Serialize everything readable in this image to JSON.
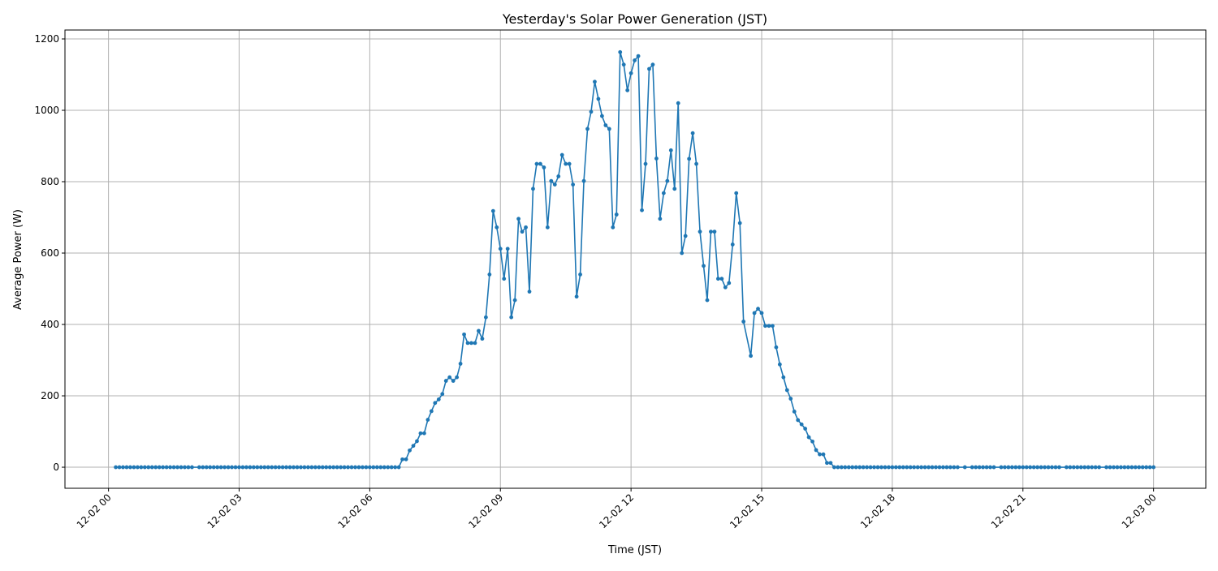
{
  "chart_data": {
    "type": "line",
    "title": "Yesterday's Solar Power Generation (JST)",
    "xlabel": "Time (JST)",
    "ylabel": "Average Power (W)",
    "x_tick_labels": [
      "12-02 00",
      "12-02 03",
      "12-02 06",
      "12-02 09",
      "12-02 12",
      "12-02 15",
      "12-02 18",
      "12-02 21",
      "12-03 00"
    ],
    "y_ticks": [
      0,
      200,
      400,
      600,
      800,
      1000,
      1200
    ],
    "ylim": [
      -59,
      1225
    ],
    "xlim_hours": [
      -1.0,
      25.2
    ],
    "grid": true,
    "marker": "circle",
    "color": "#1f77b4",
    "x": [
      "00:10",
      "00:15",
      "00:20",
      "00:25",
      "00:30",
      "00:35",
      "00:40",
      "00:45",
      "00:50",
      "00:55",
      "01:00",
      "01:05",
      "01:10",
      "01:15",
      "01:20",
      "01:25",
      "01:30",
      "01:35",
      "01:40",
      "01:45",
      "01:50",
      "01:55",
      "02:05",
      "02:10",
      "02:15",
      "02:20",
      "02:25",
      "02:30",
      "02:35",
      "02:40",
      "02:45",
      "02:50",
      "02:55",
      "03:00",
      "03:05",
      "03:10",
      "03:15",
      "03:20",
      "03:25",
      "03:30",
      "03:35",
      "03:40",
      "03:45",
      "03:50",
      "03:55",
      "04:00",
      "04:05",
      "04:10",
      "04:15",
      "04:20",
      "04:25",
      "04:30",
      "04:35",
      "04:40",
      "04:45",
      "04:50",
      "04:55",
      "05:00",
      "05:05",
      "05:10",
      "05:15",
      "05:20",
      "05:25",
      "05:30",
      "05:35",
      "05:40",
      "05:45",
      "05:50",
      "05:55",
      "06:00",
      "06:05",
      "06:10",
      "06:15",
      "06:20",
      "06:25",
      "06:30",
      "06:35",
      "06:40",
      "06:45",
      "06:50",
      "06:55",
      "07:00",
      "07:05",
      "07:10",
      "07:15",
      "07:20",
      "07:25",
      "07:30",
      "07:35",
      "07:40",
      "07:45",
      "07:50",
      "07:55",
      "08:00",
      "08:05",
      "08:10",
      "08:15",
      "08:20",
      "08:25",
      "08:30",
      "08:35",
      "08:40",
      "08:45",
      "08:50",
      "08:55",
      "09:00",
      "09:05",
      "09:10",
      "09:15",
      "09:20",
      "09:25",
      "09:30",
      "09:35",
      "09:40",
      "09:45",
      "09:50",
      "09:55",
      "10:00",
      "10:05",
      "10:10",
      "10:15",
      "10:20",
      "10:25",
      "10:30",
      "10:35",
      "10:40",
      "10:45",
      "10:50",
      "10:55",
      "11:00",
      "11:05",
      "11:10",
      "11:15",
      "11:20",
      "11:25",
      "11:30",
      "11:35",
      "11:40",
      "11:45",
      "11:50",
      "11:55",
      "12:00",
      "12:05",
      "12:10",
      "12:15",
      "12:20",
      "12:25",
      "12:30",
      "12:35",
      "12:40",
      "12:45",
      "12:50",
      "12:55",
      "13:00",
      "13:05",
      "13:10",
      "13:15",
      "13:20",
      "13:25",
      "13:30",
      "13:35",
      "13:40",
      "13:45",
      "13:50",
      "13:55",
      "14:00",
      "14:05",
      "14:10",
      "14:15",
      "14:20",
      "14:25",
      "14:30",
      "14:35",
      "14:45",
      "14:50",
      "14:55",
      "15:00",
      "15:05",
      "15:10",
      "15:15",
      "15:20",
      "15:25",
      "15:30",
      "15:35",
      "15:40",
      "15:45",
      "15:50",
      "15:55",
      "16:00",
      "16:05",
      "16:10",
      "16:15",
      "16:20",
      "16:25",
      "16:30",
      "16:35",
      "16:40",
      "16:45",
      "16:50",
      "16:55",
      "17:00",
      "17:05",
      "17:10",
      "17:15",
      "17:20",
      "17:25",
      "17:30",
      "17:35",
      "17:40",
      "17:45",
      "17:50",
      "17:55",
      "18:00",
      "18:05",
      "18:10",
      "18:15",
      "18:20",
      "18:25",
      "18:30",
      "18:35",
      "18:40",
      "18:45",
      "18:50",
      "18:55",
      "19:00",
      "19:05",
      "19:10",
      "19:15",
      "19:20",
      "19:25",
      "19:30",
      "19:40",
      "19:50",
      "19:55",
      "20:00",
      "20:05",
      "20:10",
      "20:15",
      "20:20",
      "20:30",
      "20:35",
      "20:40",
      "20:45",
      "20:50",
      "20:55",
      "21:00",
      "21:05",
      "21:10",
      "21:15",
      "21:20",
      "21:25",
      "21:30",
      "21:35",
      "21:40",
      "21:45",
      "21:50",
      "22:00",
      "22:05",
      "22:10",
      "22:15",
      "22:20",
      "22:25",
      "22:30",
      "22:35",
      "22:40",
      "22:45",
      "22:55",
      "23:00",
      "23:05",
      "23:10",
      "23:15",
      "23:20",
      "23:25",
      "23:30",
      "23:35",
      "23:40",
      "23:45",
      "23:50",
      "23:55",
      "24:00"
    ],
    "y": [
      0,
      0,
      0,
      0,
      0,
      0,
      0,
      0,
      0,
      0,
      0,
      0,
      0,
      0,
      0,
      0,
      0,
      0,
      0,
      0,
      0,
      0,
      0,
      0,
      0,
      0,
      0,
      0,
      0,
      0,
      0,
      0,
      0,
      0,
      0,
      0,
      0,
      0,
      0,
      0,
      0,
      0,
      0,
      0,
      0,
      0,
      0,
      0,
      0,
      0,
      0,
      0,
      0,
      0,
      0,
      0,
      0,
      0,
      0,
      0,
      0,
      0,
      0,
      0,
      0,
      0,
      0,
      0,
      0,
      0,
      0,
      0,
      0,
      0,
      0,
      0,
      0,
      0,
      22,
      22,
      47,
      60,
      73,
      95,
      95,
      133,
      157,
      180,
      190,
      205,
      242,
      252,
      242,
      252,
      290,
      372,
      348,
      348,
      348,
      382,
      360,
      420,
      540,
      718,
      672,
      612,
      528,
      612,
      420,
      468,
      696,
      660,
      672,
      492,
      780,
      850,
      850,
      840,
      672,
      802,
      792,
      815,
      875,
      850,
      850,
      792,
      478,
      540,
      802,
      948,
      996,
      1080,
      1032,
      984,
      958,
      948,
      672,
      708,
      1163,
      1128,
      1056,
      1104,
      1140,
      1152,
      720,
      850,
      1116,
      1128,
      865,
      696,
      768,
      802,
      888,
      780,
      1020,
      600,
      648,
      864,
      936,
      850,
      660,
      564,
      468,
      660,
      660,
      528,
      528,
      504,
      516,
      624,
      768,
      684,
      408,
      312,
      432,
      444,
      432,
      396,
      396,
      396,
      336,
      288,
      252,
      216,
      192,
      156,
      132,
      120,
      108,
      84,
      72,
      48,
      36,
      36,
      12,
      12,
      0,
      0,
      0,
      0,
      0,
      0,
      0,
      0,
      0,
      0,
      0,
      0,
      0,
      0,
      0,
      0,
      0,
      0,
      0,
      0,
      0,
      0,
      0,
      0,
      0,
      0,
      0,
      0,
      0,
      0,
      0,
      0,
      0,
      0,
      0,
      0,
      0,
      0,
      0,
      0,
      0,
      0,
      0,
      0,
      0,
      0,
      0,
      0,
      0,
      0,
      0,
      0,
      0,
      0,
      0,
      0,
      0,
      0,
      0,
      0,
      0,
      0,
      0,
      0,
      0,
      0,
      0,
      0,
      0,
      0,
      0,
      0,
      0,
      0,
      0,
      0,
      0,
      0,
      0,
      0,
      0,
      0,
      0,
      0
    ]
  }
}
